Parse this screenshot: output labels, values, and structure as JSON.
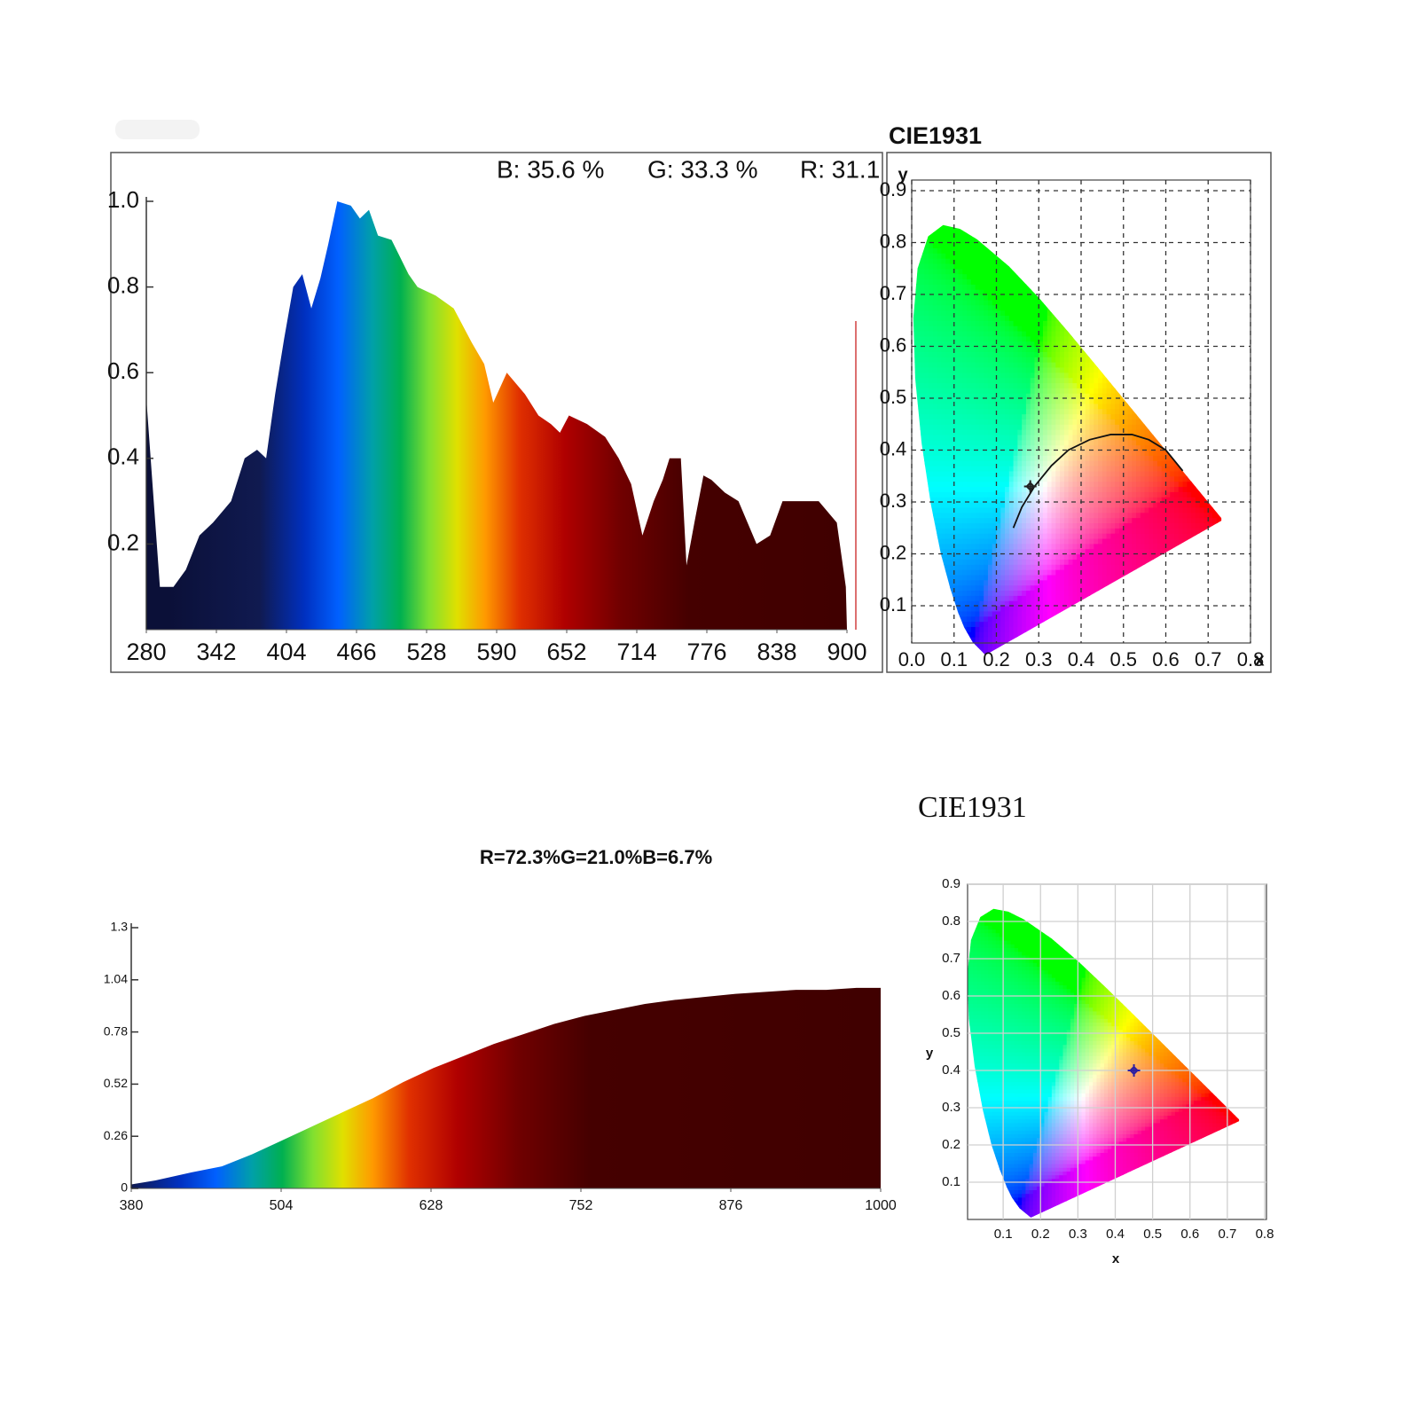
{
  "chart_data": [
    {
      "type": "area",
      "annotations": [
        "B: 35.6 %",
        "G: 33.3 %",
        "R: 31.1"
      ],
      "x": [
        280,
        292,
        304,
        315,
        327,
        339,
        355,
        367,
        378,
        386,
        394,
        402,
        410,
        418,
        426,
        434,
        441,
        449,
        461,
        469,
        477,
        485,
        497,
        512,
        520,
        536,
        552,
        568,
        579,
        587,
        599,
        615,
        627,
        638,
        646,
        654,
        670,
        686,
        698,
        709,
        719,
        729,
        737,
        743,
        753,
        758,
        765,
        773,
        780,
        792,
        804,
        812,
        820,
        832,
        843,
        859,
        875,
        891,
        899,
        900
      ],
      "values": [
        0.54,
        0.1,
        0.1,
        0.14,
        0.22,
        0.25,
        0.3,
        0.4,
        0.42,
        0.4,
        0.55,
        0.68,
        0.8,
        0.83,
        0.75,
        0.82,
        0.9,
        1.0,
        0.99,
        0.96,
        0.98,
        0.92,
        0.91,
        0.83,
        0.8,
        0.78,
        0.75,
        0.67,
        0.62,
        0.53,
        0.6,
        0.55,
        0.5,
        0.48,
        0.46,
        0.5,
        0.48,
        0.45,
        0.4,
        0.34,
        0.22,
        0.3,
        0.35,
        0.4,
        0.4,
        0.15,
        0.25,
        0.36,
        0.35,
        0.32,
        0.3,
        0.25,
        0.2,
        0.22,
        0.3,
        0.3,
        0.3,
        0.25,
        0.1,
        0.0
      ],
      "xlim": [
        280,
        900
      ],
      "xticks": [
        280,
        342,
        404,
        466,
        528,
        590,
        652,
        714,
        776,
        838,
        900
      ],
      "ylim": [
        0,
        1
      ],
      "yticks": [
        0.2,
        0.4,
        0.6,
        0.8,
        {
          "value": 1,
          "label": "1.0"
        }
      ]
    },
    {
      "type": "cie",
      "title": "CIE1931",
      "xlabel": "x",
      "ylabel": "y",
      "xlim": [
        0,
        0.8
      ],
      "xticks": [
        {
          "value": 0,
          "label": "0.0"
        },
        0.1,
        0.2,
        0.3,
        0.4,
        0.5,
        0.6,
        0.7,
        0.8
      ],
      "ylim": [
        0,
        0.9
      ],
      "yticks": [
        0.1,
        0.2,
        0.3,
        0.4,
        0.5,
        0.6,
        0.7,
        0.8,
        0.9
      ],
      "grid": "dashed",
      "x": [
        0.28
      ],
      "values": [
        0.33
      ],
      "curve": {
        "x": [
          0.24,
          0.26,
          0.29,
          0.33,
          0.37,
          0.42,
          0.47,
          0.52,
          0.56,
          0.6,
          0.64
        ],
        "values": [
          0.25,
          0.29,
          0.33,
          0.37,
          0.4,
          0.42,
          0.43,
          0.43,
          0.42,
          0.4,
          0.36
        ]
      }
    },
    {
      "type": "area",
      "title": "R=72.3%G=21.0%B=6.7%",
      "x": [
        380,
        400,
        430,
        455,
        480,
        505,
        530,
        555,
        580,
        605,
        630,
        655,
        680,
        705,
        730,
        755,
        780,
        805,
        830,
        855,
        880,
        905,
        930,
        955,
        980,
        1000
      ],
      "values": [
        0.02,
        0.04,
        0.08,
        0.11,
        0.17,
        0.24,
        0.31,
        0.38,
        0.45,
        0.53,
        0.6,
        0.66,
        0.72,
        0.77,
        0.82,
        0.86,
        0.89,
        0.92,
        0.94,
        0.955,
        0.97,
        0.98,
        0.99,
        0.99,
        1.0,
        1.0
      ],
      "xlim": [
        380,
        1000
      ],
      "xticks": [
        380,
        504,
        628,
        752,
        876,
        1000
      ],
      "ylim": [
        0,
        1.3
      ],
      "yticks": [
        0,
        0.26,
        0.52,
        0.78,
        1.04,
        1.3
      ]
    },
    {
      "type": "cie",
      "title": "CIE1931",
      "xlabel": "x",
      "ylabel": "y",
      "xlim": [
        0,
        0.8
      ],
      "xticks": [
        0.1,
        0.2,
        0.3,
        0.4,
        0.5,
        0.6,
        0.7,
        0.8
      ],
      "ylim": [
        0,
        0.9
      ],
      "yticks": [
        0.1,
        0.2,
        0.3,
        0.4,
        0.5,
        0.6,
        0.7,
        0.8,
        0.9
      ],
      "grid": "solid",
      "x": [
        0.45
      ],
      "values": [
        0.4
      ]
    }
  ]
}
